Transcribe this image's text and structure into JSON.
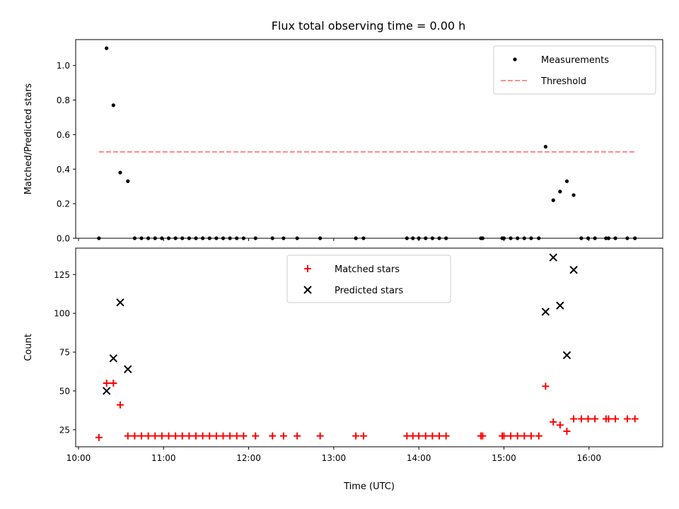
{
  "title": "Flux total observing time = 0.00 h",
  "chart_data": [
    {
      "type": "scatter",
      "ylabel": "Matched/Predicted stars",
      "xlabel": "",
      "ylim": [
        0,
        1.15
      ],
      "yticks": [
        0.0,
        0.2,
        0.4,
        0.6,
        0.8,
        1.0
      ],
      "ytick_labels": [
        "0.0",
        "0.2",
        "0.4",
        "0.6",
        "0.8",
        "1.0"
      ],
      "legend_position": "top-right",
      "series": [
        {
          "name": "Measurements",
          "kind": "points",
          "color": "#000000",
          "points": [
            [
              10.24,
              0.0
            ],
            [
              10.33,
              1.1
            ],
            [
              10.41,
              0.77
            ],
            [
              10.49,
              0.38
            ],
            [
              10.58,
              0.33
            ],
            [
              10.66,
              0.0
            ],
            [
              10.74,
              0.0
            ],
            [
              10.82,
              0.0
            ],
            [
              10.9,
              0.0
            ],
            [
              10.98,
              0.0
            ],
            [
              11.06,
              0.0
            ],
            [
              11.14,
              0.0
            ],
            [
              11.22,
              0.0
            ],
            [
              11.3,
              0.0
            ],
            [
              11.38,
              0.0
            ],
            [
              11.46,
              0.0
            ],
            [
              11.54,
              0.0
            ],
            [
              11.62,
              0.0
            ],
            [
              11.7,
              0.0
            ],
            [
              11.78,
              0.0
            ],
            [
              11.86,
              0.0
            ],
            [
              11.94,
              0.0
            ],
            [
              12.08,
              0.0
            ],
            [
              12.28,
              0.0
            ],
            [
              12.41,
              0.0
            ],
            [
              12.57,
              0.0
            ],
            [
              12.84,
              0.0
            ],
            [
              13.26,
              0.0
            ],
            [
              13.35,
              0.0
            ],
            [
              13.86,
              0.0
            ],
            [
              13.93,
              0.0
            ],
            [
              14.0,
              0.0
            ],
            [
              14.08,
              0.0
            ],
            [
              14.16,
              0.0
            ],
            [
              14.24,
              0.0
            ],
            [
              14.32,
              0.0
            ],
            [
              14.73,
              0.0
            ],
            [
              14.75,
              0.0
            ],
            [
              14.98,
              0.0
            ],
            [
              15.0,
              0.0
            ],
            [
              15.08,
              0.0
            ],
            [
              15.16,
              0.0
            ],
            [
              15.24,
              0.0
            ],
            [
              15.32,
              0.0
            ],
            [
              15.41,
              0.0
            ],
            [
              15.49,
              0.53
            ],
            [
              15.58,
              0.22
            ],
            [
              15.66,
              0.27
            ],
            [
              15.74,
              0.33
            ],
            [
              15.82,
              0.25
            ],
            [
              15.91,
              0.0
            ],
            [
              15.99,
              0.0
            ],
            [
              16.07,
              0.0
            ],
            [
              16.2,
              0.0
            ],
            [
              16.23,
              0.0
            ],
            [
              16.31,
              0.0
            ],
            [
              16.45,
              0.0
            ],
            [
              16.54,
              0.0
            ]
          ]
        },
        {
          "name": "Threshold",
          "kind": "dashed-line",
          "color": "#ff7f7f",
          "points": [
            [
              10.24,
              0.5
            ],
            [
              16.56,
              0.5
            ]
          ]
        }
      ]
    },
    {
      "type": "scatter",
      "ylabel": "Count",
      "xlabel": "Time (UTC)",
      "ylim": [
        14,
        142
      ],
      "xlim": [
        9.9667,
        16.8667
      ],
      "yticks": [
        25,
        50,
        75,
        100,
        125
      ],
      "ytick_labels": [
        "25",
        "50",
        "75",
        "100",
        "125"
      ],
      "xticks": [
        10,
        11,
        12,
        13,
        14,
        15,
        16
      ],
      "xtick_labels": [
        "10:00",
        "11:00",
        "12:00",
        "13:00",
        "14:00",
        "15:00",
        "16:00"
      ],
      "legend_position": "top-center",
      "series": [
        {
          "name": "Matched stars",
          "marker": "plus",
          "color": "#ff0000",
          "points": [
            [
              10.24,
              20
            ],
            [
              10.33,
              55
            ],
            [
              10.41,
              55
            ],
            [
              10.49,
              41
            ],
            [
              10.58,
              21
            ],
            [
              10.66,
              21
            ],
            [
              10.74,
              21
            ],
            [
              10.82,
              21
            ],
            [
              10.9,
              21
            ],
            [
              10.98,
              21
            ],
            [
              11.06,
              21
            ],
            [
              11.14,
              21
            ],
            [
              11.22,
              21
            ],
            [
              11.3,
              21
            ],
            [
              11.38,
              21
            ],
            [
              11.46,
              21
            ],
            [
              11.54,
              21
            ],
            [
              11.62,
              21
            ],
            [
              11.7,
              21
            ],
            [
              11.78,
              21
            ],
            [
              11.86,
              21
            ],
            [
              11.94,
              21
            ],
            [
              12.08,
              21
            ],
            [
              12.28,
              21
            ],
            [
              12.41,
              21
            ],
            [
              12.57,
              21
            ],
            [
              12.84,
              21
            ],
            [
              13.26,
              21
            ],
            [
              13.35,
              21
            ],
            [
              13.86,
              21
            ],
            [
              13.93,
              21
            ],
            [
              14.0,
              21
            ],
            [
              14.08,
              21
            ],
            [
              14.16,
              21
            ],
            [
              14.24,
              21
            ],
            [
              14.32,
              21
            ],
            [
              14.73,
              21
            ],
            [
              14.75,
              21
            ],
            [
              14.98,
              21
            ],
            [
              15.0,
              21
            ],
            [
              15.08,
              21
            ],
            [
              15.16,
              21
            ],
            [
              15.24,
              21
            ],
            [
              15.32,
              21
            ],
            [
              15.41,
              21
            ],
            [
              15.49,
              53
            ],
            [
              15.58,
              30
            ],
            [
              15.66,
              28
            ],
            [
              15.74,
              24
            ],
            [
              15.82,
              32
            ],
            [
              15.91,
              32
            ],
            [
              15.99,
              32
            ],
            [
              16.07,
              32
            ],
            [
              16.2,
              32
            ],
            [
              16.23,
              32
            ],
            [
              16.31,
              32
            ],
            [
              16.45,
              32
            ],
            [
              16.54,
              32
            ]
          ]
        },
        {
          "name": "Predicted stars",
          "marker": "x",
          "color": "#000000",
          "points": [
            [
              10.33,
              50
            ],
            [
              10.41,
              71
            ],
            [
              10.49,
              107
            ],
            [
              10.58,
              64
            ],
            [
              15.49,
              101
            ],
            [
              15.58,
              136
            ],
            [
              15.66,
              105
            ],
            [
              15.74,
              73
            ],
            [
              15.82,
              128
            ]
          ]
        }
      ]
    }
  ]
}
